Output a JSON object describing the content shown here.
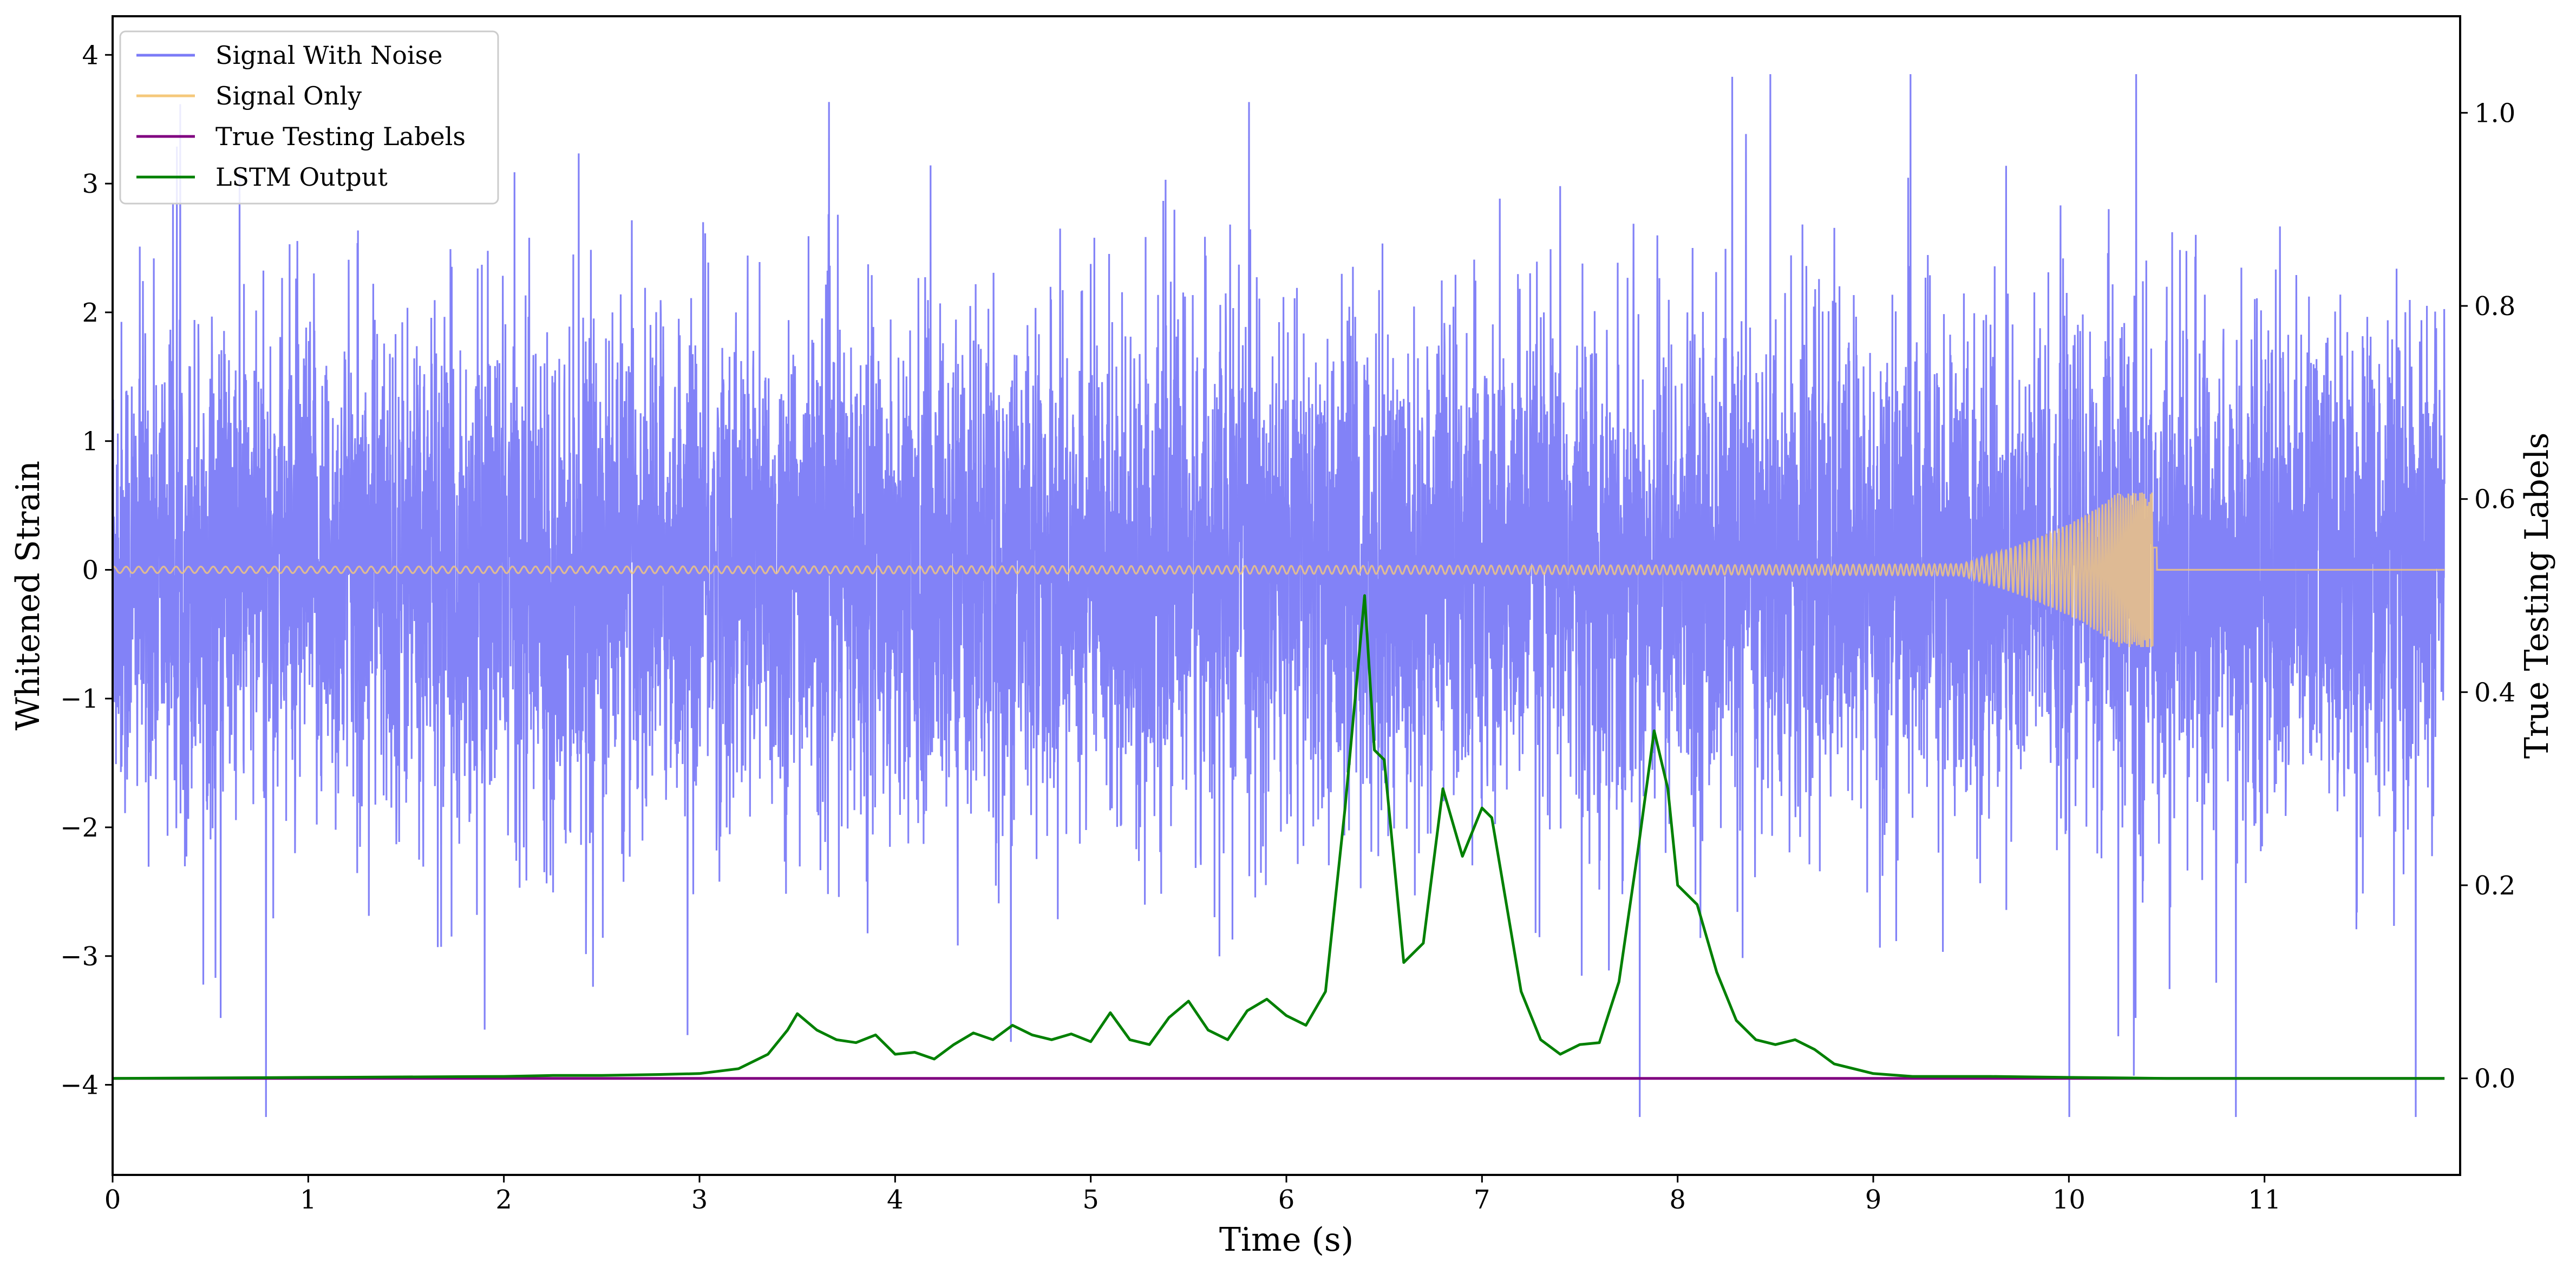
{
  "chart_data": {
    "type": "line",
    "title": "",
    "xlabel": "Time (s)",
    "ylabel_left": "Whitened Strain",
    "ylabel_right": "True Testing Labels",
    "xlim": [
      0,
      12
    ],
    "ylim_left": [
      -4.7,
      4.3
    ],
    "ylim_right": [
      -0.1,
      1.1
    ],
    "x_ticks": [
      0,
      1,
      2,
      3,
      4,
      5,
      6,
      7,
      8,
      9,
      10,
      11
    ],
    "x_tick_labels": [
      "0",
      "1",
      "2",
      "3",
      "4",
      "5",
      "6",
      "7",
      "8",
      "9",
      "10",
      "11"
    ],
    "y_left_ticks": [
      4,
      3,
      2,
      1,
      0,
      -1,
      -2,
      -3,
      -4
    ],
    "y_left_tick_labels": [
      "4",
      "3",
      "2",
      "1",
      "0",
      "−1",
      "−2",
      "−3",
      "−4"
    ],
    "y_right_ticks": [
      1.0,
      0.8,
      0.6,
      0.4,
      0.2,
      0.0
    ],
    "y_right_tick_labels": [
      "1.0",
      "0.8",
      "0.6",
      "0.4",
      "0.2",
      "0.0"
    ],
    "grid": false,
    "legend_position": "top-left",
    "series": [
      {
        "name": "Signal With Noise",
        "axis": "left",
        "color": "#7b7bf7",
        "description_values": {
          "typical_min": -2.0,
          "typical_max": 2.0,
          "min": -4.25,
          "max": 3.85
        }
      },
      {
        "name": "Signal Only",
        "axis": "left",
        "color": "#f5c87a",
        "chirp": {
          "start_time": 0,
          "end_time": 10.45,
          "end_amplitude": 0.6,
          "start_amplitude": 0.01
        }
      },
      {
        "name": "True Testing Labels",
        "axis": "right",
        "color": "#800080",
        "x": [
          0,
          11.92
        ],
        "y": [
          0.0,
          0.0
        ]
      },
      {
        "name": "LSTM Output",
        "axis": "right",
        "color": "#008000",
        "x": [
          0,
          1.0,
          2.0,
          2.25,
          2.5,
          2.8,
          3.0,
          3.2,
          3.35,
          3.45,
          3.5,
          3.6,
          3.7,
          3.8,
          3.9,
          4.0,
          4.1,
          4.2,
          4.3,
          4.4,
          4.5,
          4.6,
          4.7,
          4.8,
          4.9,
          5.0,
          5.1,
          5.2,
          5.3,
          5.4,
          5.5,
          5.6,
          5.7,
          5.8,
          5.9,
          6.0,
          6.1,
          6.2,
          6.3,
          6.4,
          6.45,
          6.5,
          6.6,
          6.7,
          6.8,
          6.9,
          7.0,
          7.05,
          7.1,
          7.2,
          7.3,
          7.4,
          7.5,
          7.6,
          7.7,
          7.8,
          7.88,
          7.95,
          8.0,
          8.1,
          8.2,
          8.3,
          8.4,
          8.5,
          8.6,
          8.7,
          8.8,
          9.0,
          9.2,
          9.4,
          9.6,
          10.0,
          10.5,
          11.0,
          11.92
        ],
        "y": [
          0.0,
          0.001,
          0.002,
          0.003,
          0.003,
          0.004,
          0.005,
          0.01,
          0.025,
          0.05,
          0.067,
          0.05,
          0.04,
          0.037,
          0.045,
          0.025,
          0.027,
          0.02,
          0.035,
          0.047,
          0.04,
          0.055,
          0.045,
          0.04,
          0.046,
          0.038,
          0.068,
          0.04,
          0.035,
          0.063,
          0.08,
          0.05,
          0.04,
          0.07,
          0.082,
          0.065,
          0.055,
          0.09,
          0.28,
          0.5,
          0.34,
          0.33,
          0.12,
          0.14,
          0.3,
          0.23,
          0.28,
          0.27,
          0.21,
          0.09,
          0.04,
          0.025,
          0.035,
          0.037,
          0.1,
          0.24,
          0.36,
          0.3,
          0.2,
          0.18,
          0.11,
          0.06,
          0.04,
          0.035,
          0.04,
          0.03,
          0.015,
          0.005,
          0.002,
          0.002,
          0.002,
          0.001,
          0.0,
          0.0,
          0.0
        ]
      }
    ]
  }
}
